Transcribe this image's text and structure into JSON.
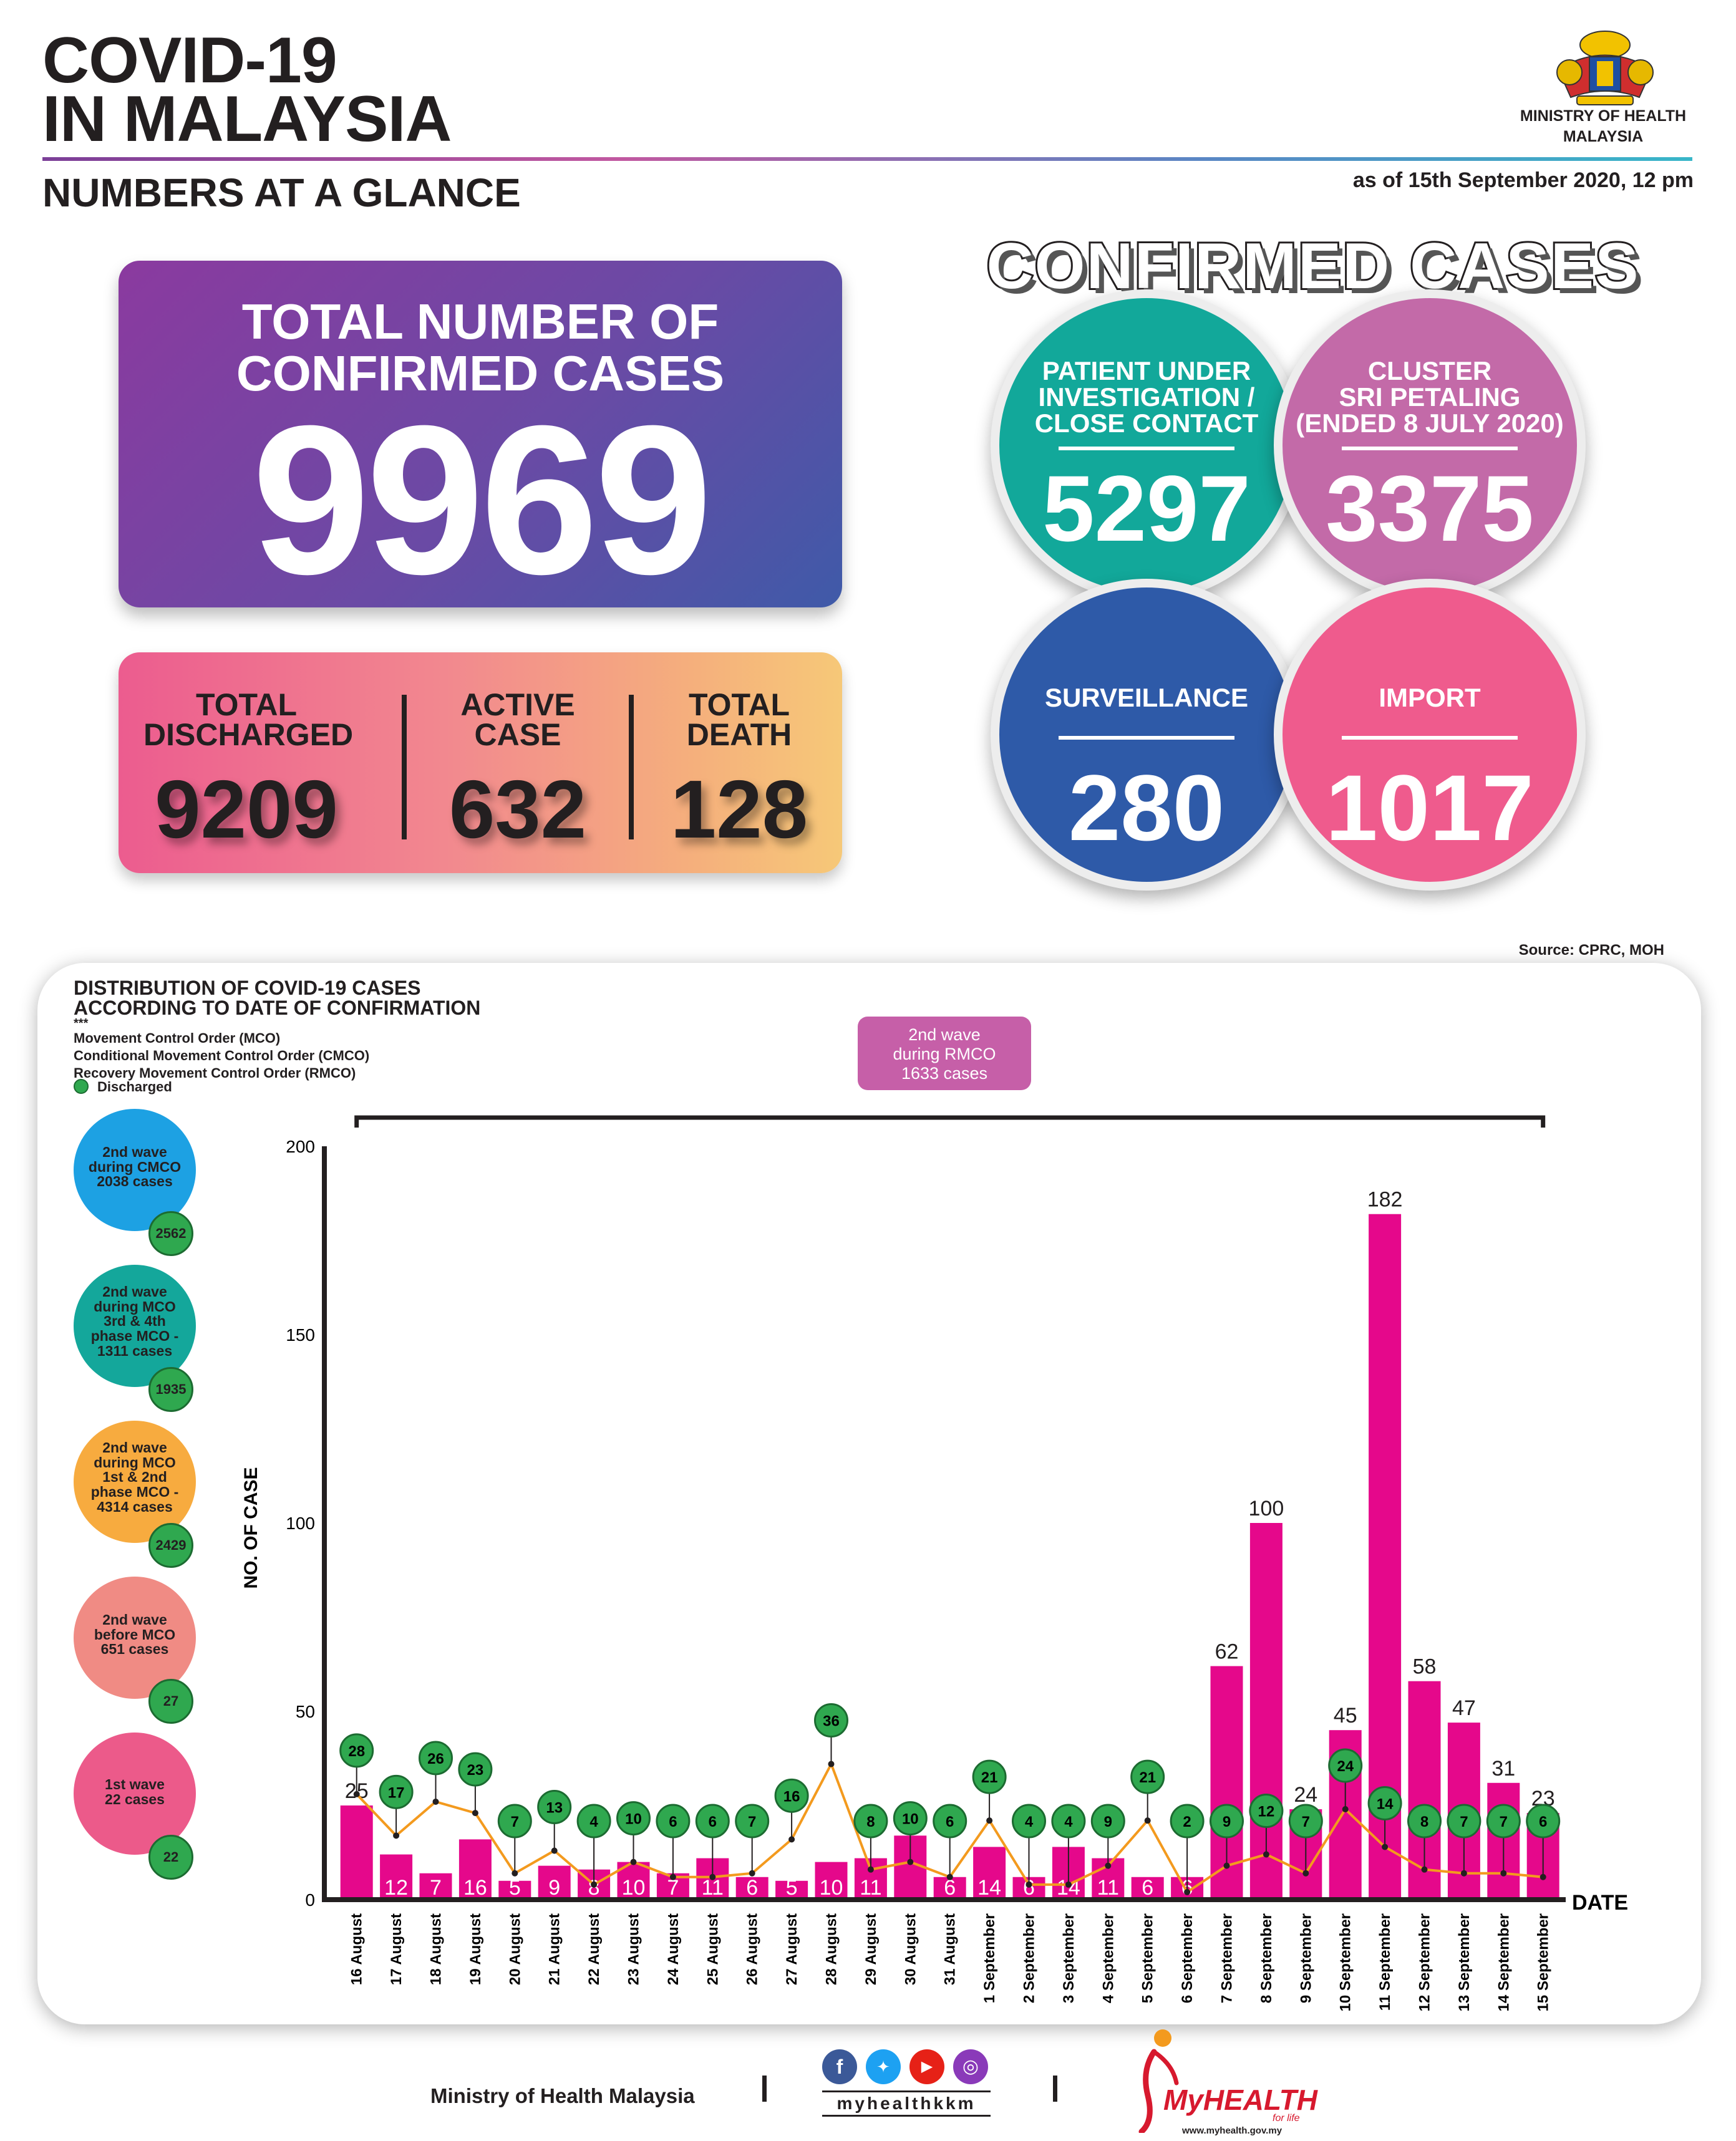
{
  "header": {
    "title_line1": "COVID-19",
    "title_line2": "IN MALAYSIA",
    "subtitle": "NUMBERS AT A GLANCE",
    "as_of": "as of 15th September 2020, 12 pm",
    "ministry_line1": "MINISTRY OF HEALTH",
    "ministry_line2": "MALAYSIA"
  },
  "total": {
    "label_line1": "TOTAL NUMBER OF",
    "label_line2": "CONFIRMED CASES",
    "value": "9969"
  },
  "stats": [
    {
      "label_line1": "TOTAL",
      "label_line2": "DISCHARGED",
      "value": "9209"
    },
    {
      "label_line1": "ACTIVE",
      "label_line2": "CASE",
      "value": "632"
    },
    {
      "label_line1": "TOTAL",
      "label_line2": "DEATH",
      "value": "128"
    }
  ],
  "confirmed": {
    "heading": "CONFIRMED CASES",
    "categories": [
      {
        "lines": [
          "PATIENT UNDER",
          "INVESTIGATION /",
          "CLOSE CONTACT"
        ],
        "value": "5297",
        "color": "#12a89a"
      },
      {
        "lines": [
          "CLUSTER",
          "SRI PETALING",
          "(ENDED 8 JULY 2020)"
        ],
        "value": "3375",
        "color": "#c36aa8"
      },
      {
        "lines": [
          "SURVEILLANCE"
        ],
        "value": "280",
        "color": "#2e5aa8"
      },
      {
        "lines": [
          "IMPORT"
        ],
        "value": "1017",
        "color": "#ef5b8d"
      }
    ]
  },
  "source": "Source: CPRC, MOH",
  "chart_panel": {
    "title_line1": "DISTRIBUTION OF COVID-19 CASES",
    "title_line2": "ACCORDING TO DATE OF CONFIRMATION",
    "stars": "***",
    "legend": [
      "Movement Control Order (MCO)",
      "Conditional Movement Control Order (CMCO)",
      "Recovery Movement Control Order (RMCO)"
    ],
    "discharged_label": "Discharged",
    "rmco_box": [
      "2nd wave",
      "during RMCO",
      "1633 cases"
    ],
    "waves": [
      {
        "lines": [
          "2nd wave",
          "during CMCO",
          "2038 cases"
        ],
        "badge": "2562",
        "color": "#1da1e3"
      },
      {
        "lines": [
          "2nd wave",
          "during MCO",
          "3rd & 4th",
          "phase MCO -",
          "1311 cases"
        ],
        "badge": "1935",
        "color": "#14a79b"
      },
      {
        "lines": [
          "2nd wave",
          "during MCO",
          "1st & 2nd",
          "phase MCO -",
          "4314 cases"
        ],
        "badge": "2429",
        "color": "#f7ab3f"
      },
      {
        "lines": [
          "2nd wave",
          "before MCO",
          "651 cases"
        ],
        "badge": "27",
        "color": "#f08b84"
      },
      {
        "lines": [
          "1st wave",
          "22 cases"
        ],
        "badge": "22",
        "color": "#ec5a8a"
      }
    ]
  },
  "chart_data": {
    "type": "bar",
    "title": "DISTRIBUTION OF COVID-19 CASES ACCORDING TO DATE OF CONFIRMATION",
    "xlabel": "DATE",
    "ylabel": "NO. OF CASE",
    "ylim": [
      0,
      200
    ],
    "yticks": [
      0,
      50,
      100,
      150,
      200
    ],
    "bar_color": "#e5088b",
    "line_color": "#f39a1e",
    "categories": [
      "16 August",
      "17 August",
      "18 August",
      "19 August",
      "20 August",
      "21 August",
      "22 August",
      "23 August",
      "24 August",
      "25 August",
      "26 August",
      "27 August",
      "28 August",
      "29 August",
      "30 August",
      "31 August",
      "1 September",
      "2 September",
      "3 September",
      "4 September",
      "5 September",
      "6 September",
      "7 September",
      "8 September",
      "9 September",
      "10 September",
      "11 September",
      "12 September",
      "13 September",
      "14 September",
      "15 September"
    ],
    "series": [
      {
        "name": "Confirmed cases",
        "values": [
          25,
          12,
          7,
          16,
          5,
          9,
          8,
          10,
          7,
          11,
          6,
          5,
          10,
          11,
          17,
          6,
          14,
          6,
          14,
          11,
          6,
          6,
          62,
          100,
          24,
          45,
          182,
          58,
          47,
          31,
          23
        ]
      },
      {
        "name": "Discharged",
        "values": [
          28,
          17,
          26,
          23,
          7,
          13,
          4,
          10,
          6,
          6,
          7,
          16,
          36,
          8,
          10,
          6,
          21,
          4,
          4,
          9,
          21,
          2,
          9,
          12,
          7,
          24,
          14,
          8,
          7,
          7,
          6
        ]
      }
    ]
  },
  "footer": {
    "ministry": "Ministry of Health Malaysia",
    "handle": "myhealthkkm",
    "brand": "MyHEALTH",
    "tagline": "for life",
    "url": "www.myhealth.gov.my"
  }
}
